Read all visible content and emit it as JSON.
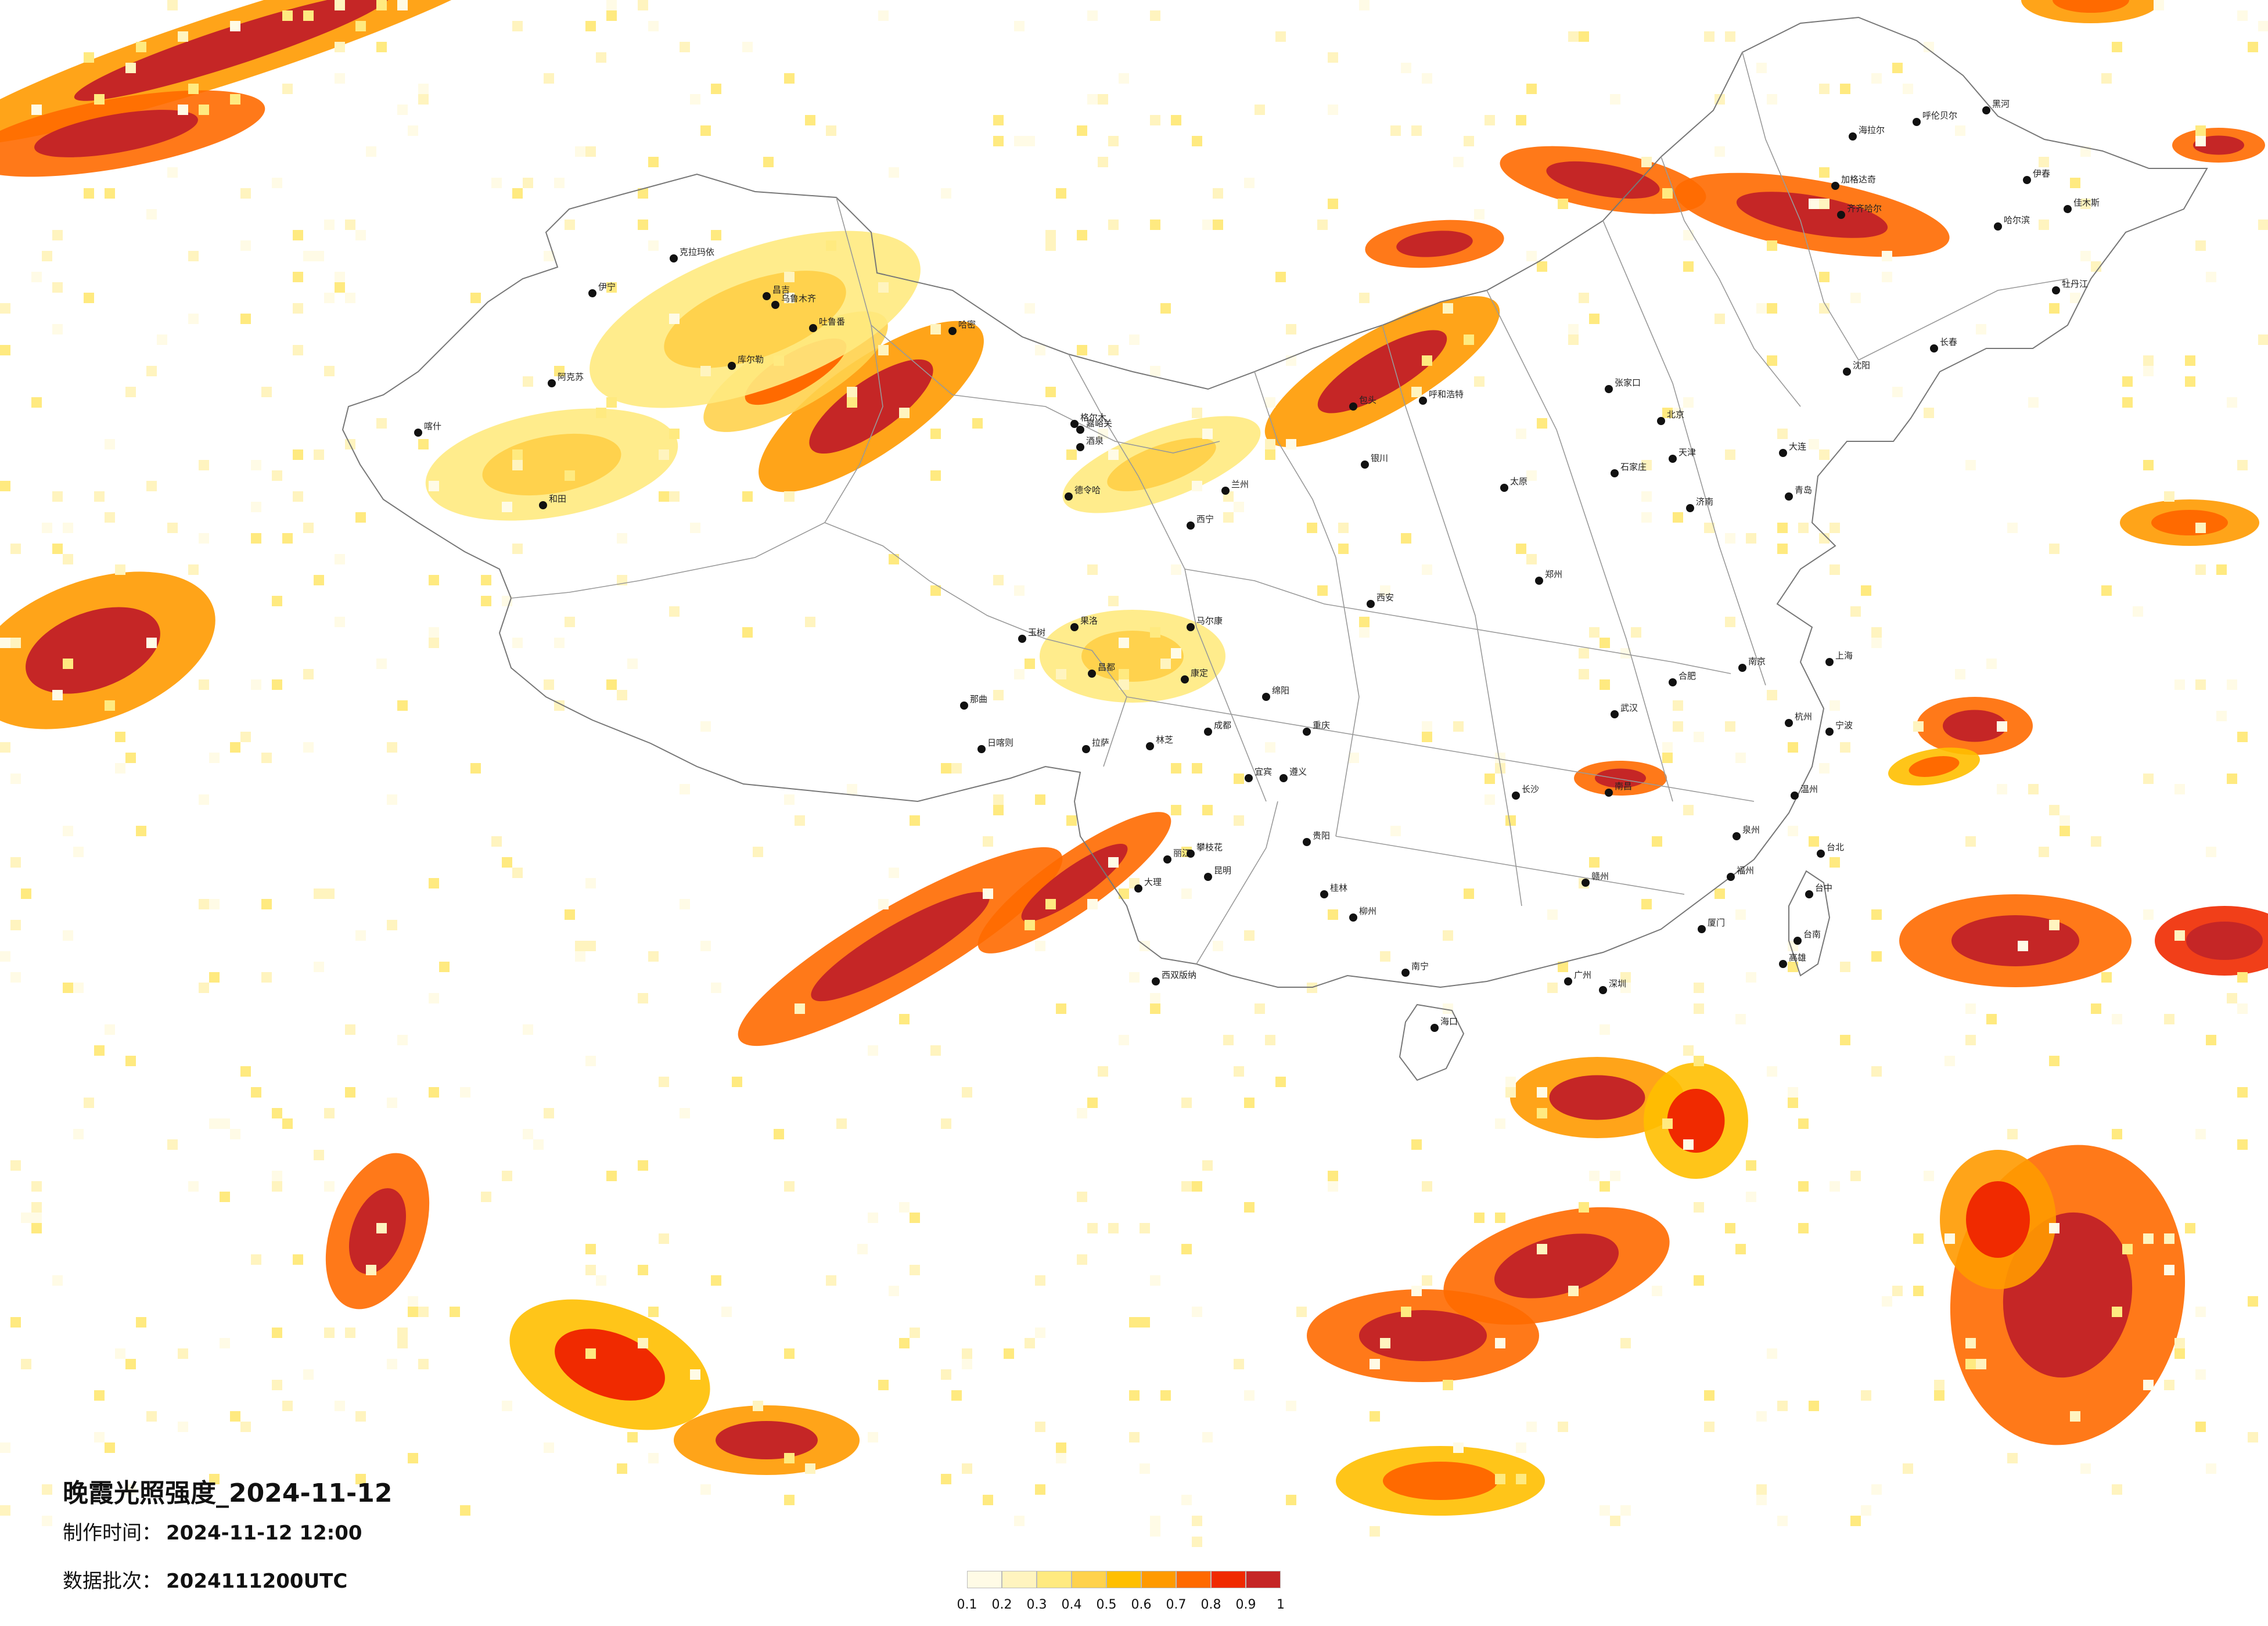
{
  "title": "晚霞光照强度_2024-11-12",
  "produced_label": "制作时间：",
  "produced_value": "2024-11-12 12:00",
  "batch_label": "数据批次：",
  "batch_value": "2024111200UTC",
  "legend": {
    "ticks": [
      "0.1",
      "0.2",
      "0.3",
      "0.4",
      "0.5",
      "0.6",
      "0.7",
      "0.8",
      "0.9",
      "1"
    ],
    "colors": [
      "#fffbe6",
      "#fff4bf",
      "#ffea80",
      "#ffd24d",
      "#ffbf00",
      "#ff9a00",
      "#ff6a00",
      "#f02a00",
      "#c52626"
    ]
  },
  "cities": [
    "克拉玛依",
    "伊宁",
    "昌吉",
    "乌鲁木齐",
    "吐鲁番",
    "哈密",
    "库尔勒",
    "阿克苏",
    "喀什",
    "和田",
    "嘉峪关",
    "酒泉",
    "格尔木",
    "德令哈",
    "西宁",
    "兰州",
    "银川",
    "呼和浩特",
    "包头",
    "张家口",
    "北京",
    "天津",
    "石家庄",
    "太原",
    "济南",
    "青岛",
    "郑州",
    "西安",
    "武汉",
    "南京",
    "上海",
    "杭州",
    "合肥",
    "南昌",
    "长沙",
    "福州",
    "厦门",
    "广州",
    "深圳",
    "南宁",
    "海口",
    "贵阳",
    "昆明",
    "成都",
    "重庆",
    "拉萨",
    "日喀则",
    "林芝",
    "那曲",
    "昌都",
    "沈阳",
    "大连",
    "长春",
    "哈尔滨",
    "齐齐哈尔",
    "呼伦贝尔",
    "海拉尔",
    "加格达奇",
    "黑河",
    "伊春",
    "佳木斯",
    "牡丹江",
    "台北",
    "台中",
    "台南",
    "高雄",
    "桂林",
    "柳州",
    "遵义",
    "绵阳",
    "宜宾",
    "大理",
    "丽江",
    "西双版纳",
    "攀枝花",
    "玉树",
    "果洛",
    "马尔康",
    "康定",
    "赣州",
    "泉州",
    "温州",
    "宁波"
  ]
}
